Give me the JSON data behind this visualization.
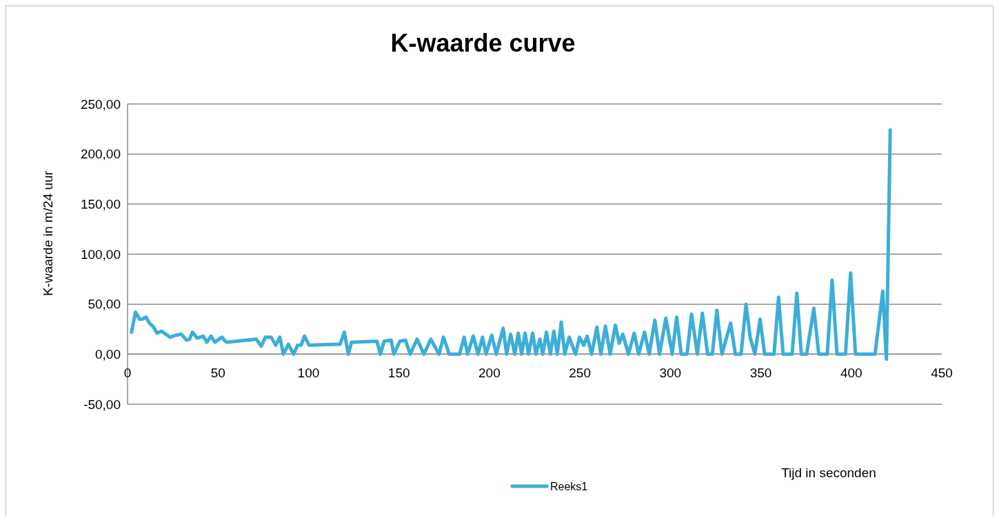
{
  "chart_data": {
    "type": "line",
    "title": "K-waarde curve",
    "xlabel": "Tijd in seconden",
    "ylabel": "K-waarde in m/24 uur",
    "xlim": [
      0,
      450
    ],
    "xticks": [
      0,
      50,
      100,
      150,
      200,
      250,
      300,
      350,
      400,
      450
    ],
    "ylim": [
      -50,
      250
    ],
    "yticks": [
      {
        "value": -50,
        "label": "-50,00"
      },
      {
        "value": 0,
        "label": "0,00"
      },
      {
        "value": 50,
        "label": "50,00"
      },
      {
        "value": 100,
        "label": "100,00"
      },
      {
        "value": 150,
        "label": "150,00"
      },
      {
        "value": 200,
        "label": "200,00"
      },
      {
        "value": 250,
        "label": "250,00"
      }
    ],
    "grid": "y",
    "legend": "bottom",
    "marker": "none",
    "line_style": "solid",
    "series": [
      {
        "name": "Reeks1",
        "color": "#3caed8",
        "x": [
          2.2,
          4.4,
          6.7,
          8,
          10.2,
          12.1,
          14,
          16.3,
          18.7,
          20.3,
          23.5,
          26.7,
          29.8,
          32.6,
          34.3,
          35.9,
          38.5,
          41.9,
          43.8,
          46.1,
          48.3,
          52.1,
          54.6,
          71.1,
          73.9,
          76.2,
          79.4,
          81.9,
          84.2,
          86.1,
          88.9,
          91.8,
          94,
          95.9,
          97.8,
          100.3,
          117.5,
          119.8,
          122,
          123.8,
          137.8,
          139.7,
          141.8,
          145.7,
          147.2,
          150.5,
          153.6,
          156.2,
          160,
          163.8,
          167.6,
          172.1,
          174.6,
          177.8,
          183.5,
          186,
          187.9,
          191.1,
          193.7,
          196.2,
          198.1,
          201.3,
          203.8,
          207.6,
          209.5,
          211.7,
          214,
          215.9,
          217.8,
          219.7,
          221.6,
          223.9,
          225.7,
          227.9,
          229.5,
          231.5,
          233.7,
          235.6,
          237.5,
          239.7,
          241.6,
          244.1,
          247.6,
          249.8,
          252.1,
          254,
          256.5,
          259.4,
          261.6,
          264.1,
          266.7,
          269.6,
          271.7,
          273.7,
          276.8,
          280,
          282.5,
          285.7,
          288.3,
          291.4,
          294,
          297.5,
          301,
          303.5,
          306,
          309.2,
          311.7,
          314.9,
          317.7,
          320.6,
          323.2,
          325.7,
          328.5,
          333.3,
          335.9,
          339.1,
          341.8,
          344.1,
          346.7,
          349.6,
          352.1,
          357.3,
          359.8,
          362.3,
          367.3,
          369.9,
          372.4,
          375.3,
          379.3,
          382,
          386.7,
          389.4,
          392.1,
          396.8,
          399.6,
          402.3,
          413.1,
          417.4,
          419.4,
          421.5
        ],
        "values": [
          22,
          42,
          35,
          35,
          37,
          31,
          28,
          21,
          23,
          21,
          17,
          19,
          20,
          14,
          15,
          22,
          16,
          18,
          12,
          18,
          12,
          17,
          12,
          15,
          8,
          17,
          17,
          9,
          17,
          0,
          10,
          0,
          9,
          9,
          18,
          9,
          10,
          22,
          0,
          12,
          13,
          0,
          13,
          14,
          0,
          13,
          14,
          0,
          15,
          0,
          15,
          0,
          17,
          0,
          0,
          17,
          0,
          18,
          0,
          17,
          0,
          19,
          0,
          26,
          0,
          20,
          0,
          21,
          0,
          21,
          0,
          21,
          0,
          15,
          0,
          22,
          0,
          23,
          0,
          32,
          0,
          17,
          0,
          17,
          9,
          18,
          0,
          27,
          0,
          28,
          0,
          29,
          11,
          20,
          0,
          21,
          0,
          22,
          0,
          34,
          0,
          36,
          0,
          37,
          0,
          0,
          40,
          0,
          41,
          0,
          0,
          44,
          0,
          31,
          0,
          0,
          50,
          17,
          0,
          35,
          0,
          0,
          57,
          0,
          0,
          61,
          0,
          0,
          46,
          0,
          0,
          74,
          0,
          0,
          81,
          0,
          0,
          63,
          -5,
          224
        ]
      }
    ]
  }
}
